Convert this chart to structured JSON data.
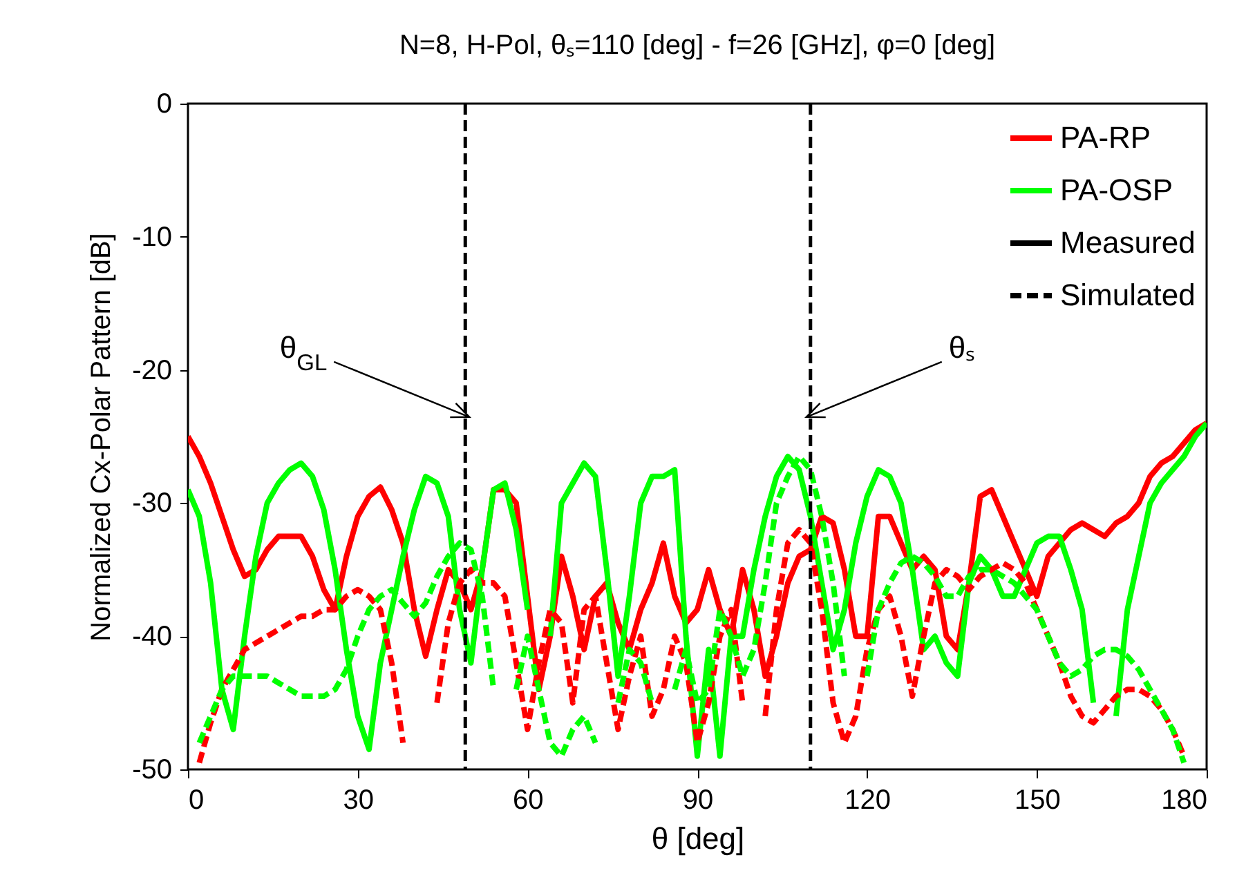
{
  "chart_data": {
    "type": "line",
    "title": "N=8, H-Pol, θₛ=110 [deg] - f=26 [GHz], φ=0 [deg]",
    "xlabel": "θ [deg]",
    "ylabel": "Normalized Cx-Polar Pattern [dB]",
    "x": [
      0,
      2,
      4,
      6,
      8,
      10,
      12,
      14,
      16,
      18,
      20,
      22,
      24,
      26,
      28,
      30,
      32,
      34,
      36,
      38,
      40,
      42,
      44,
      46,
      48,
      50,
      52,
      54,
      56,
      58,
      60,
      62,
      64,
      66,
      68,
      70,
      72,
      74,
      76,
      78,
      80,
      82,
      84,
      86,
      88,
      90,
      92,
      94,
      96,
      98,
      100,
      102,
      104,
      106,
      108,
      110,
      112,
      114,
      116,
      118,
      120,
      122,
      124,
      126,
      128,
      130,
      132,
      134,
      136,
      138,
      140,
      142,
      144,
      146,
      148,
      150,
      152,
      154,
      156,
      158,
      160,
      162,
      164,
      166,
      168,
      170,
      172,
      174,
      176,
      178,
      180
    ],
    "series": [
      {
        "name": "PA-RP",
        "color": "#ff0000",
        "line_style": "solid",
        "values": [
          -25,
          -26.5,
          -28.5,
          -31,
          -33.5,
          -35.5,
          -35,
          -33.5,
          -32.5,
          -32.5,
          -32.5,
          -34,
          -36.5,
          -38,
          -34,
          -31,
          -29.5,
          -28.8,
          -30.5,
          -33,
          -38,
          -41.5,
          -38,
          -35,
          -36,
          -38,
          -35,
          -29,
          -29,
          -30,
          -37,
          -44,
          -40,
          -34,
          -37,
          -41,
          -37,
          -36,
          -39,
          -41,
          -38,
          -36,
          -33,
          -37,
          -39,
          -38,
          -35,
          -38,
          -40,
          -35,
          -38,
          -43,
          -40,
          -36,
          -34,
          -33.5,
          -31,
          -31.5,
          -35,
          -40,
          -40,
          -31,
          -31,
          -33,
          -35,
          -34,
          -35,
          -40,
          -41,
          -36,
          -29.5,
          -29,
          -31,
          -33,
          -35,
          -37,
          -34,
          -33,
          -32,
          -31.5,
          -32,
          -32.5,
          -31.5,
          -31,
          -30,
          -28,
          -27,
          -26.5,
          -25.5,
          -24.5,
          -24
        ]
      },
      {
        "name": "PA-OSP",
        "color": "#00ff00",
        "line_style": "solid",
        "values": [
          -29,
          -31,
          -36,
          -44,
          -47,
          -40,
          -34,
          -30,
          -28.5,
          -27.5,
          -27,
          -28,
          -30.5,
          -35,
          -41,
          -46,
          -48.5,
          -42,
          -38,
          -34,
          -30.5,
          -28,
          -28.5,
          -31,
          -38,
          -42,
          -35,
          -29,
          -28.5,
          -32,
          -38,
          null,
          -40,
          -30,
          -28.5,
          -27,
          -28,
          -35,
          -43,
          -37,
          -30,
          -28,
          -28,
          -27.5,
          -40,
          -49,
          -41,
          -49,
          -40,
          -40,
          -35,
          -31,
          -28,
          -26.5,
          -27.5,
          -31,
          -36,
          -41,
          -38,
          -33,
          -29.5,
          -27.5,
          -28,
          -30,
          -35,
          -41,
          -40,
          -42,
          -43,
          -36,
          -34,
          -35,
          -37,
          -37,
          -35,
          -33,
          -32.5,
          -32.5,
          -35,
          -38,
          -45,
          null,
          -46,
          -38,
          -34,
          -30,
          -28.5,
          -27.5,
          -26.5,
          -25,
          -24
        ]
      },
      {
        "color": "#ff0000",
        "line_style": "dashed",
        "values": [
          null,
          -49.5,
          -46.5,
          -44,
          -42.5,
          -41,
          -40.5,
          -40,
          -39.5,
          -39,
          -38.5,
          -38.5,
          -38,
          -38,
          -37,
          -36.5,
          -37,
          -38,
          -42,
          -48,
          null,
          null,
          -45,
          -39,
          -36,
          -35,
          -36,
          -36,
          -37,
          -42,
          -47,
          -42,
          -38,
          -39,
          -45,
          -38,
          -37,
          -42,
          -47,
          -43,
          -40,
          -46,
          -44,
          -40,
          -42,
          -48,
          -45,
          -40,
          -38,
          -45,
          null,
          -46,
          -38,
          -33,
          -32,
          -33,
          -38,
          -45,
          -48,
          -46,
          -41,
          -38,
          -37,
          -40,
          -44.5,
          -40,
          -36,
          -35,
          -35.5,
          -36.5,
          -35.5,
          -35,
          -34.5,
          -35,
          -36,
          -38,
          -40,
          -42,
          -44.5,
          -46,
          -46.5,
          -45.5,
          -44.5,
          -44,
          -44,
          -44.5,
          -45.5,
          -47,
          -49,
          null,
          null
        ]
      },
      {
        "color": "#00ff00",
        "line_style": "dashed",
        "values": [
          null,
          -48,
          -46,
          -44,
          -43,
          -43,
          -43,
          -43,
          -43.5,
          -44,
          -44.5,
          -44.5,
          -44.5,
          -44,
          -42.5,
          -40,
          -38,
          -37,
          -36.5,
          -37.5,
          -38.5,
          -37.5,
          -35.5,
          -34,
          -33,
          -33.5,
          -37,
          -44,
          null,
          -44,
          -40,
          -44,
          -48,
          -49,
          -47,
          -46,
          -48,
          null,
          -45,
          -41,
          -42,
          -45,
          null,
          -44,
          -41,
          -45,
          -44,
          -38,
          -40,
          -43,
          -41,
          -36,
          -30,
          -28,
          -26.5,
          -27.5,
          -31,
          -36,
          -43,
          null,
          -43,
          -38,
          -36,
          -34.5,
          -34,
          -34.5,
          -35.5,
          -37,
          -37,
          -35.5,
          -35,
          -35,
          -35.5,
          -36,
          -37,
          -38,
          -40,
          -42,
          -43,
          -42.5,
          -41.5,
          -41,
          -41,
          -41.5,
          -42.5,
          -44,
          -45.5,
          -47,
          -49.5,
          null,
          null
        ]
      },
      {
        "name": "Measured",
        "color": "#000000",
        "line_style": "solid",
        "values": [
          null,
          null,
          null,
          null,
          null,
          null,
          null,
          null,
          null,
          null,
          null,
          null,
          null,
          null,
          null,
          null,
          null,
          null,
          null,
          null,
          null,
          null,
          null,
          null,
          null,
          null,
          null,
          null,
          null,
          null,
          null,
          null,
          null,
          null,
          null,
          null,
          null,
          null,
          null,
          null,
          null,
          null,
          null,
          null,
          null,
          null,
          null,
          null,
          null,
          null,
          null,
          null,
          null,
          null,
          null,
          null,
          null,
          null,
          null,
          null,
          null,
          null,
          null,
          null,
          null,
          null,
          null,
          null,
          null,
          null,
          null,
          null,
          null,
          null,
          null,
          null,
          null,
          null,
          null,
          null,
          null,
          null,
          null,
          null,
          null,
          null,
          null,
          null,
          null,
          null,
          null
        ]
      },
      {
        "name": "Simulated",
        "color": "#000000",
        "line_style": "dashed",
        "values": [
          null,
          null,
          null,
          null,
          null,
          null,
          null,
          null,
          null,
          null,
          null,
          null,
          null,
          null,
          null,
          null,
          null,
          null,
          null,
          null,
          null,
          null,
          null,
          null,
          null,
          null,
          null,
          null,
          null,
          null,
          null,
          null,
          null,
          null,
          null,
          null,
          null,
          null,
          null,
          null,
          null,
          null,
          null,
          null,
          null,
          null,
          null,
          null,
          null,
          null,
          null,
          null,
          null,
          null,
          null,
          null,
          null,
          null,
          null,
          null,
          null,
          null,
          null,
          null,
          null,
          null,
          null,
          null,
          null,
          null,
          null,
          null,
          null,
          null,
          null,
          null,
          null,
          null,
          null,
          null,
          null,
          null,
          null,
          null,
          null,
          null,
          null,
          null,
          null,
          null,
          null
        ]
      }
    ],
    "xlim": [
      0,
      180
    ],
    "xticks": [
      0,
      30,
      60,
      90,
      120,
      150,
      180
    ],
    "ylim": [
      -50,
      0
    ],
    "yticks": [
      -50,
      -40,
      -30,
      -20,
      -10,
      0
    ],
    "ref_lines": [
      {
        "axis": "x",
        "value": 49,
        "label": "θ$_{GL}$",
        "color": "#000000",
        "line_style": "dashed"
      },
      {
        "axis": "x",
        "value": 110,
        "label": "θₛ",
        "color": "#000000",
        "line_style": "dashed"
      }
    ],
    "grid": false,
    "legend": "top right"
  }
}
